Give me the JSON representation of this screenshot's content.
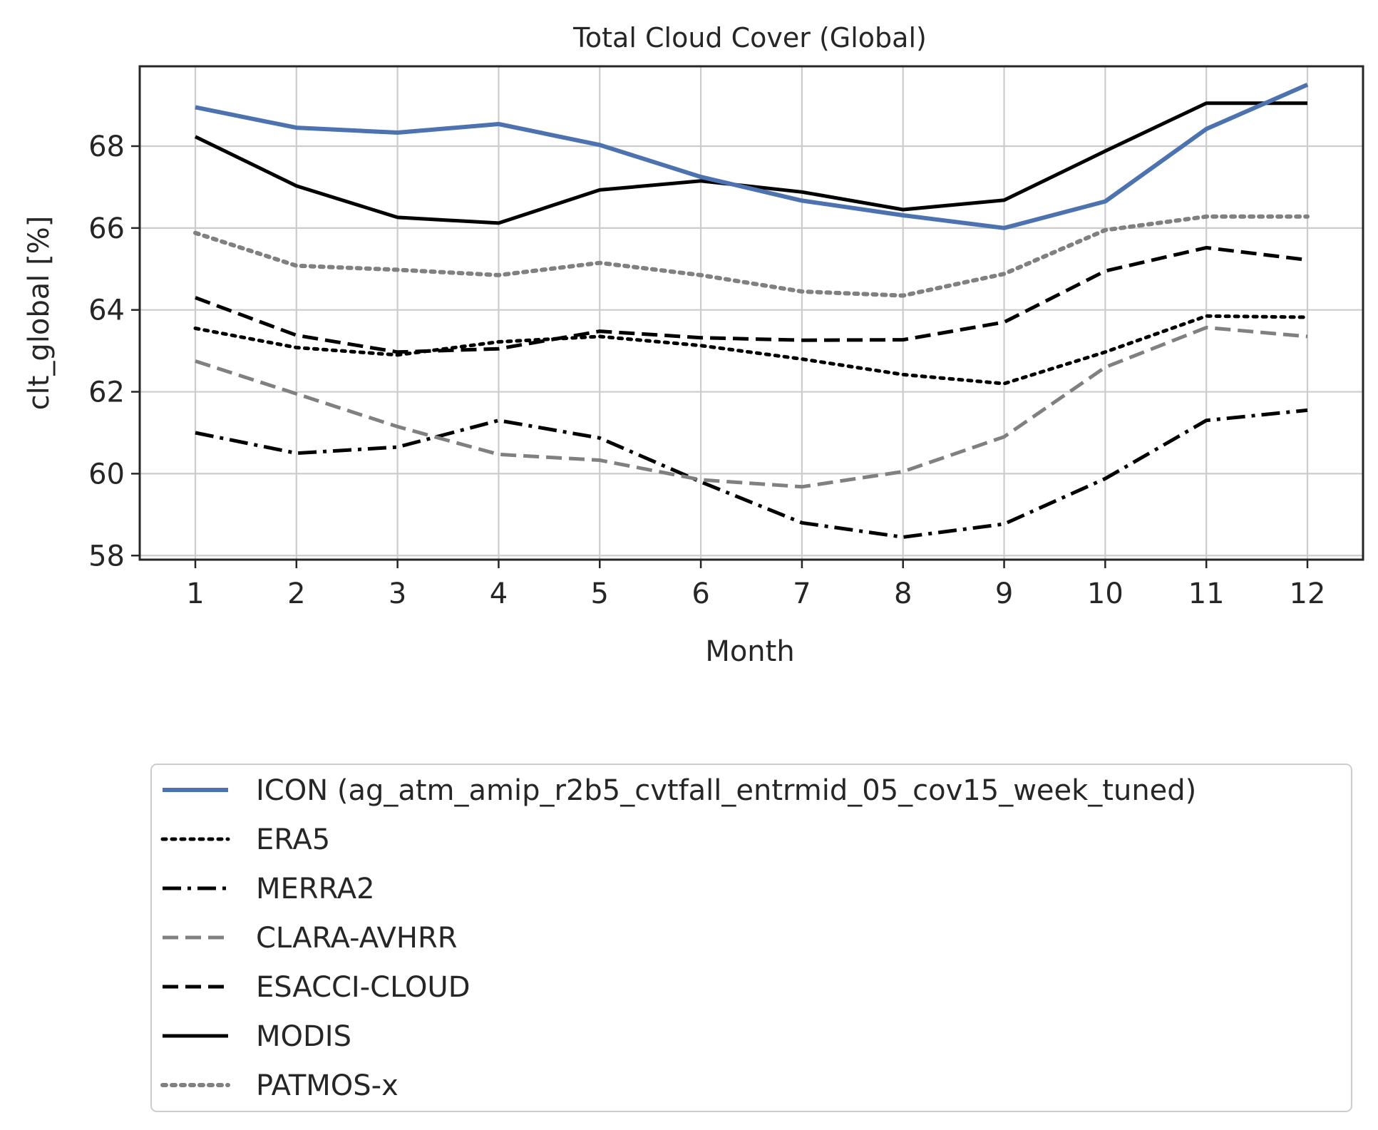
{
  "chart_data": {
    "type": "line",
    "title": "Total Cloud Cover (Global)",
    "xlabel": "Month",
    "ylabel": "clt_global [%]",
    "x": [
      1,
      2,
      3,
      4,
      5,
      6,
      7,
      8,
      9,
      10,
      11,
      12
    ],
    "xlim": [
      0.45,
      12.55
    ],
    "ylim": [
      57.9,
      69.95
    ],
    "yticks": [
      58,
      60,
      62,
      64,
      66,
      68
    ],
    "grid": true,
    "legend_position": "below-plot",
    "series": [
      {
        "name": "ICON (ag_atm_amip_r2b5_cvtfall_entrmid_05_cov15_week_tuned)",
        "color": "#4c72b0",
        "style": "solid",
        "width": 6,
        "values": [
          68.95,
          68.45,
          68.33,
          68.54,
          68.03,
          67.25,
          66.67,
          66.31,
          66.0,
          66.65,
          68.42,
          69.5
        ]
      },
      {
        "name": "ERA5",
        "color": "#000000",
        "style": "dotted",
        "width": 5,
        "values": [
          63.55,
          63.08,
          62.9,
          63.22,
          63.35,
          63.13,
          62.8,
          62.42,
          62.2,
          62.97,
          63.85,
          63.82
        ]
      },
      {
        "name": "MERRA2",
        "color": "#000000",
        "style": "dashdot",
        "width": 5,
        "values": [
          61.0,
          60.5,
          60.65,
          61.3,
          60.87,
          59.8,
          58.8,
          58.45,
          58.77,
          59.88,
          61.3,
          61.55
        ]
      },
      {
        "name": "CLARA-AVHRR",
        "color": "#808080",
        "style": "dashed",
        "width": 5,
        "values": [
          62.75,
          61.95,
          61.15,
          60.47,
          60.33,
          59.85,
          59.68,
          60.05,
          60.9,
          62.6,
          63.57,
          63.35
        ]
      },
      {
        "name": "ESACCI-CLOUD",
        "color": "#000000",
        "style": "dashed",
        "width": 5,
        "values": [
          64.3,
          63.38,
          62.97,
          63.05,
          63.48,
          63.32,
          63.26,
          63.27,
          63.7,
          64.95,
          65.52,
          65.22
        ]
      },
      {
        "name": "MODIS",
        "color": "#000000",
        "style": "solid",
        "width": 5,
        "values": [
          68.23,
          67.03,
          66.26,
          66.12,
          66.93,
          67.15,
          66.88,
          66.45,
          66.68,
          67.88,
          69.05,
          69.05
        ]
      },
      {
        "name": "PATMOS-x",
        "color": "#808080",
        "style": "dotted",
        "width": 6,
        "values": [
          65.88,
          65.08,
          64.98,
          64.85,
          65.15,
          64.85,
          64.45,
          64.35,
          64.88,
          65.95,
          66.28,
          66.28
        ]
      }
    ]
  }
}
